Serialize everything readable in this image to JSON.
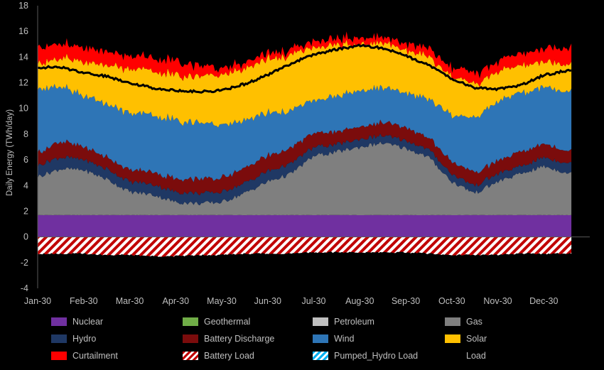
{
  "chart_data": {
    "type": "area",
    "title": "",
    "xlabel": "",
    "ylabel": "Daily Energy (TWh/day)",
    "ylim": [
      -4,
      18
    ],
    "yticks": [
      "18",
      "16",
      "14",
      "12",
      "10",
      "8",
      "6",
      "4",
      "2",
      "0",
      "-2",
      "-4"
    ],
    "xticks": [
      "Jan-30",
      "Feb-30",
      "Mar-30",
      "Apr-30",
      "May-30",
      "Jun-30",
      "Jul-30",
      "Aug-30",
      "Sep-30",
      "Oct-30",
      "Nov-30",
      "Dec-30"
    ],
    "grid": false,
    "legend_position": "bottom",
    "x_anchor_months": [
      0,
      0.5,
      1,
      1.5,
      2,
      2.5,
      3,
      3.5,
      4,
      4.5,
      5,
      5.5,
      6,
      6.5,
      7,
      7.5,
      8,
      8.5,
      9,
      9.5,
      10,
      10.5,
      11,
      11.6
    ],
    "series": [
      {
        "name": "Nuclear",
        "color": "#7030a0",
        "values": [
          1.7,
          1.7,
          1.7,
          1.7,
          1.7,
          1.7,
          1.7,
          1.7,
          1.7,
          1.7,
          1.7,
          1.7,
          1.7,
          1.7,
          1.7,
          1.7,
          1.7,
          1.7,
          1.7,
          1.7,
          1.7,
          1.7,
          1.7,
          1.7
        ]
      },
      {
        "name": "Geothermal",
        "color": "#70ad47",
        "values": [
          0,
          0,
          0,
          0,
          0,
          0,
          0,
          0,
          0,
          0,
          0,
          0,
          0,
          0,
          0,
          0,
          0,
          0,
          0,
          0,
          0,
          0,
          0,
          0
        ]
      },
      {
        "name": "Petroleum",
        "color": "#bfbfbf",
        "values": [
          0,
          0,
          0,
          0,
          0,
          0,
          0,
          0,
          0,
          0,
          0,
          0,
          0,
          0,
          0,
          0,
          0,
          0,
          0,
          0,
          0,
          0,
          0,
          0
        ]
      },
      {
        "name": "Gas",
        "color": "#7f7f7f",
        "values": [
          3.0,
          3.6,
          3.5,
          2.8,
          1.8,
          1.6,
          1.0,
          0.9,
          1.0,
          1.7,
          2.6,
          3.2,
          4.6,
          4.9,
          5.3,
          5.6,
          5.2,
          4.5,
          2.6,
          1.7,
          2.6,
          3.2,
          3.8,
          3.2
        ]
      },
      {
        "name": "Hydro",
        "color": "#1f3864",
        "values": [
          0.9,
          0.9,
          0.8,
          0.8,
          0.8,
          0.8,
          0.8,
          0.8,
          0.8,
          0.8,
          0.8,
          0.8,
          0.7,
          0.6,
          0.6,
          0.6,
          0.6,
          0.6,
          0.6,
          0.6,
          0.6,
          0.6,
          0.7,
          0.8
        ]
      },
      {
        "name": "Battery Discharge",
        "color": "#7b0c0c",
        "values": [
          1.0,
          1.2,
          1.0,
          0.9,
          0.9,
          1.0,
          1.0,
          1.1,
          1.1,
          1.2,
          1.2,
          1.2,
          1.1,
          1.0,
          1.0,
          1.0,
          1.0,
          0.9,
          1.0,
          1.0,
          1.0,
          1.1,
          1.1,
          1.0
        ]
      },
      {
        "name": "Wind",
        "color": "#2e75b6",
        "values": [
          5.0,
          4.2,
          4.0,
          4.2,
          4.4,
          4.5,
          4.5,
          4.4,
          4.1,
          3.7,
          3.3,
          2.9,
          2.5,
          2.8,
          2.8,
          2.7,
          2.7,
          3.0,
          3.6,
          4.3,
          4.6,
          4.6,
          4.4,
          4.6
        ]
      },
      {
        "name": "Solar",
        "color": "#ffc000",
        "values": [
          2.0,
          2.2,
          2.6,
          3.0,
          3.4,
          3.5,
          3.5,
          3.6,
          3.9,
          4.0,
          4.2,
          4.3,
          4.1,
          4.0,
          3.6,
          3.5,
          3.3,
          3.3,
          3.0,
          2.6,
          2.3,
          2.1,
          2.0,
          2.1
        ]
      },
      {
        "name": "Curtailment",
        "color": "#ff0000",
        "values": [
          1.3,
          1.1,
          1.1,
          1.0,
          1.0,
          1.0,
          1.1,
          0.8,
          0.5,
          0.5,
          0.5,
          0.4,
          0.5,
          0.5,
          0.5,
          0.4,
          0.5,
          0.6,
          0.7,
          0.8,
          0.8,
          0.9,
          1.0,
          1.3
        ]
      },
      {
        "name": "Battery Load",
        "color": "#c00000",
        "values": [
          -1.3,
          -1.3,
          -1.3,
          -1.4,
          -1.4,
          -1.5,
          -1.5,
          -1.4,
          -1.4,
          -1.3,
          -1.3,
          -1.3,
          -1.2,
          -1.2,
          -1.2,
          -1.2,
          -1.2,
          -1.3,
          -1.4,
          -1.4,
          -1.4,
          -1.3,
          -1.3,
          -1.3
        ]
      },
      {
        "name": "Pumped_Hydro Load",
        "color": "#00b0f0",
        "values": [
          0,
          0,
          0,
          0,
          0,
          0,
          0,
          0,
          0,
          0,
          0,
          0,
          0,
          0,
          0,
          0,
          0,
          0,
          0,
          0,
          0,
          0,
          0,
          0
        ]
      },
      {
        "name": "Load",
        "color": "#000000",
        "values": [
          13.2,
          13.2,
          12.8,
          12.5,
          12.0,
          11.6,
          11.4,
          11.3,
          11.4,
          11.9,
          12.6,
          13.5,
          14.2,
          14.6,
          14.9,
          14.7,
          14.1,
          13.4,
          12.3,
          11.6,
          11.5,
          11.8,
          12.6,
          13.0
        ]
      }
    ]
  },
  "legend": [
    {
      "name": "Nuclear",
      "style": "solid",
      "color": "#7030a0"
    },
    {
      "name": "Geothermal",
      "style": "solid",
      "color": "#70ad47"
    },
    {
      "name": "Petroleum",
      "style": "solid",
      "color": "#bfbfbf"
    },
    {
      "name": "Gas",
      "style": "solid",
      "color": "#7f7f7f"
    },
    {
      "name": "Hydro",
      "style": "solid",
      "color": "#1f3864"
    },
    {
      "name": "Battery Discharge",
      "style": "solid",
      "color": "#7b0c0c"
    },
    {
      "name": "Wind",
      "style": "solid",
      "color": "#2e75b6"
    },
    {
      "name": "Solar",
      "style": "solid",
      "color": "#ffc000"
    },
    {
      "name": "Curtailment",
      "style": "solid",
      "color": "#ff0000"
    },
    {
      "name": "Battery Load",
      "style": "hatch",
      "color": "#c00000"
    },
    {
      "name": "Pumped_Hydro Load",
      "style": "hatch",
      "color": "#00b0f0"
    },
    {
      "name": "Load",
      "style": "line",
      "color": "#000000"
    }
  ]
}
